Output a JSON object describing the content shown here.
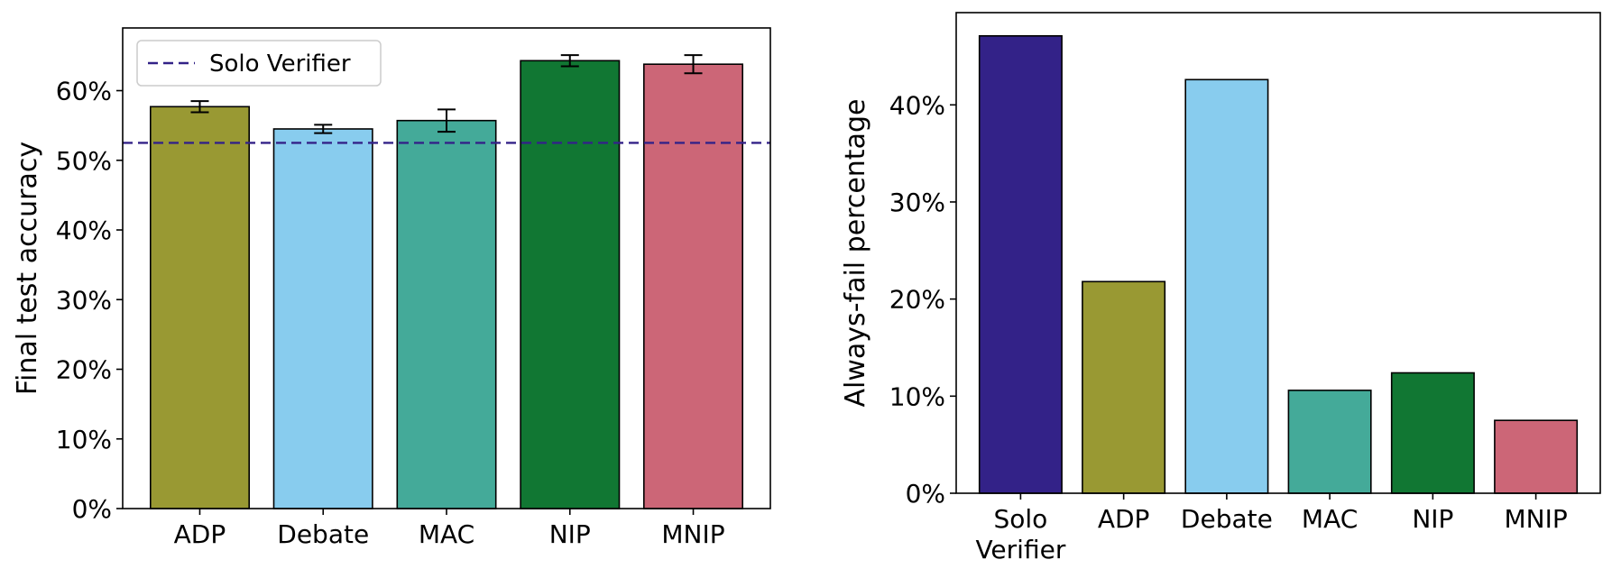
{
  "chart_data": [
    {
      "type": "bar",
      "categories": [
        "ADP",
        "Debate",
        "MAC",
        "NIP",
        "MNIP"
      ],
      "values": [
        57.7,
        54.5,
        55.7,
        64.3,
        63.8
      ],
      "errors": [
        0.8,
        0.6,
        1.6,
        0.8,
        1.3
      ],
      "colors": [
        "#999933",
        "#88CCEE",
        "#44AA99",
        "#117733",
        "#CC6677"
      ],
      "xlabel": "",
      "ylabel": "Final test accuracy",
      "yticks": [
        "0%",
        "10%",
        "20%",
        "30%",
        "40%",
        "50%",
        "60%"
      ],
      "ylim": [
        0,
        69
      ],
      "baseline": {
        "name": "Solo Verifier",
        "value": 52.5,
        "color": "#332288",
        "style": "dashed"
      },
      "legend": {
        "position": "top-left",
        "entries": [
          "Solo Verifier"
        ]
      },
      "grid": false
    },
    {
      "type": "bar",
      "categories": [
        "Solo Verifier",
        "ADP",
        "Debate",
        "MAC",
        "NIP",
        "MNIP"
      ],
      "category_lines": [
        [
          "Solo",
          "Verifier"
        ],
        [
          "ADP"
        ],
        [
          "Debate"
        ],
        [
          "MAC"
        ],
        [
          "NIP"
        ],
        [
          "MNIP"
        ]
      ],
      "values": [
        47.1,
        21.8,
        42.6,
        10.6,
        12.4,
        7.5
      ],
      "colors": [
        "#332288",
        "#999933",
        "#88CCEE",
        "#44AA99",
        "#117733",
        "#CC6677"
      ],
      "xlabel": "",
      "ylabel": "Always-fail percentage",
      "yticks": [
        "0%",
        "10%",
        "20%",
        "30%",
        "40%"
      ],
      "ylim": [
        0,
        49.5
      ],
      "grid": false
    }
  ]
}
